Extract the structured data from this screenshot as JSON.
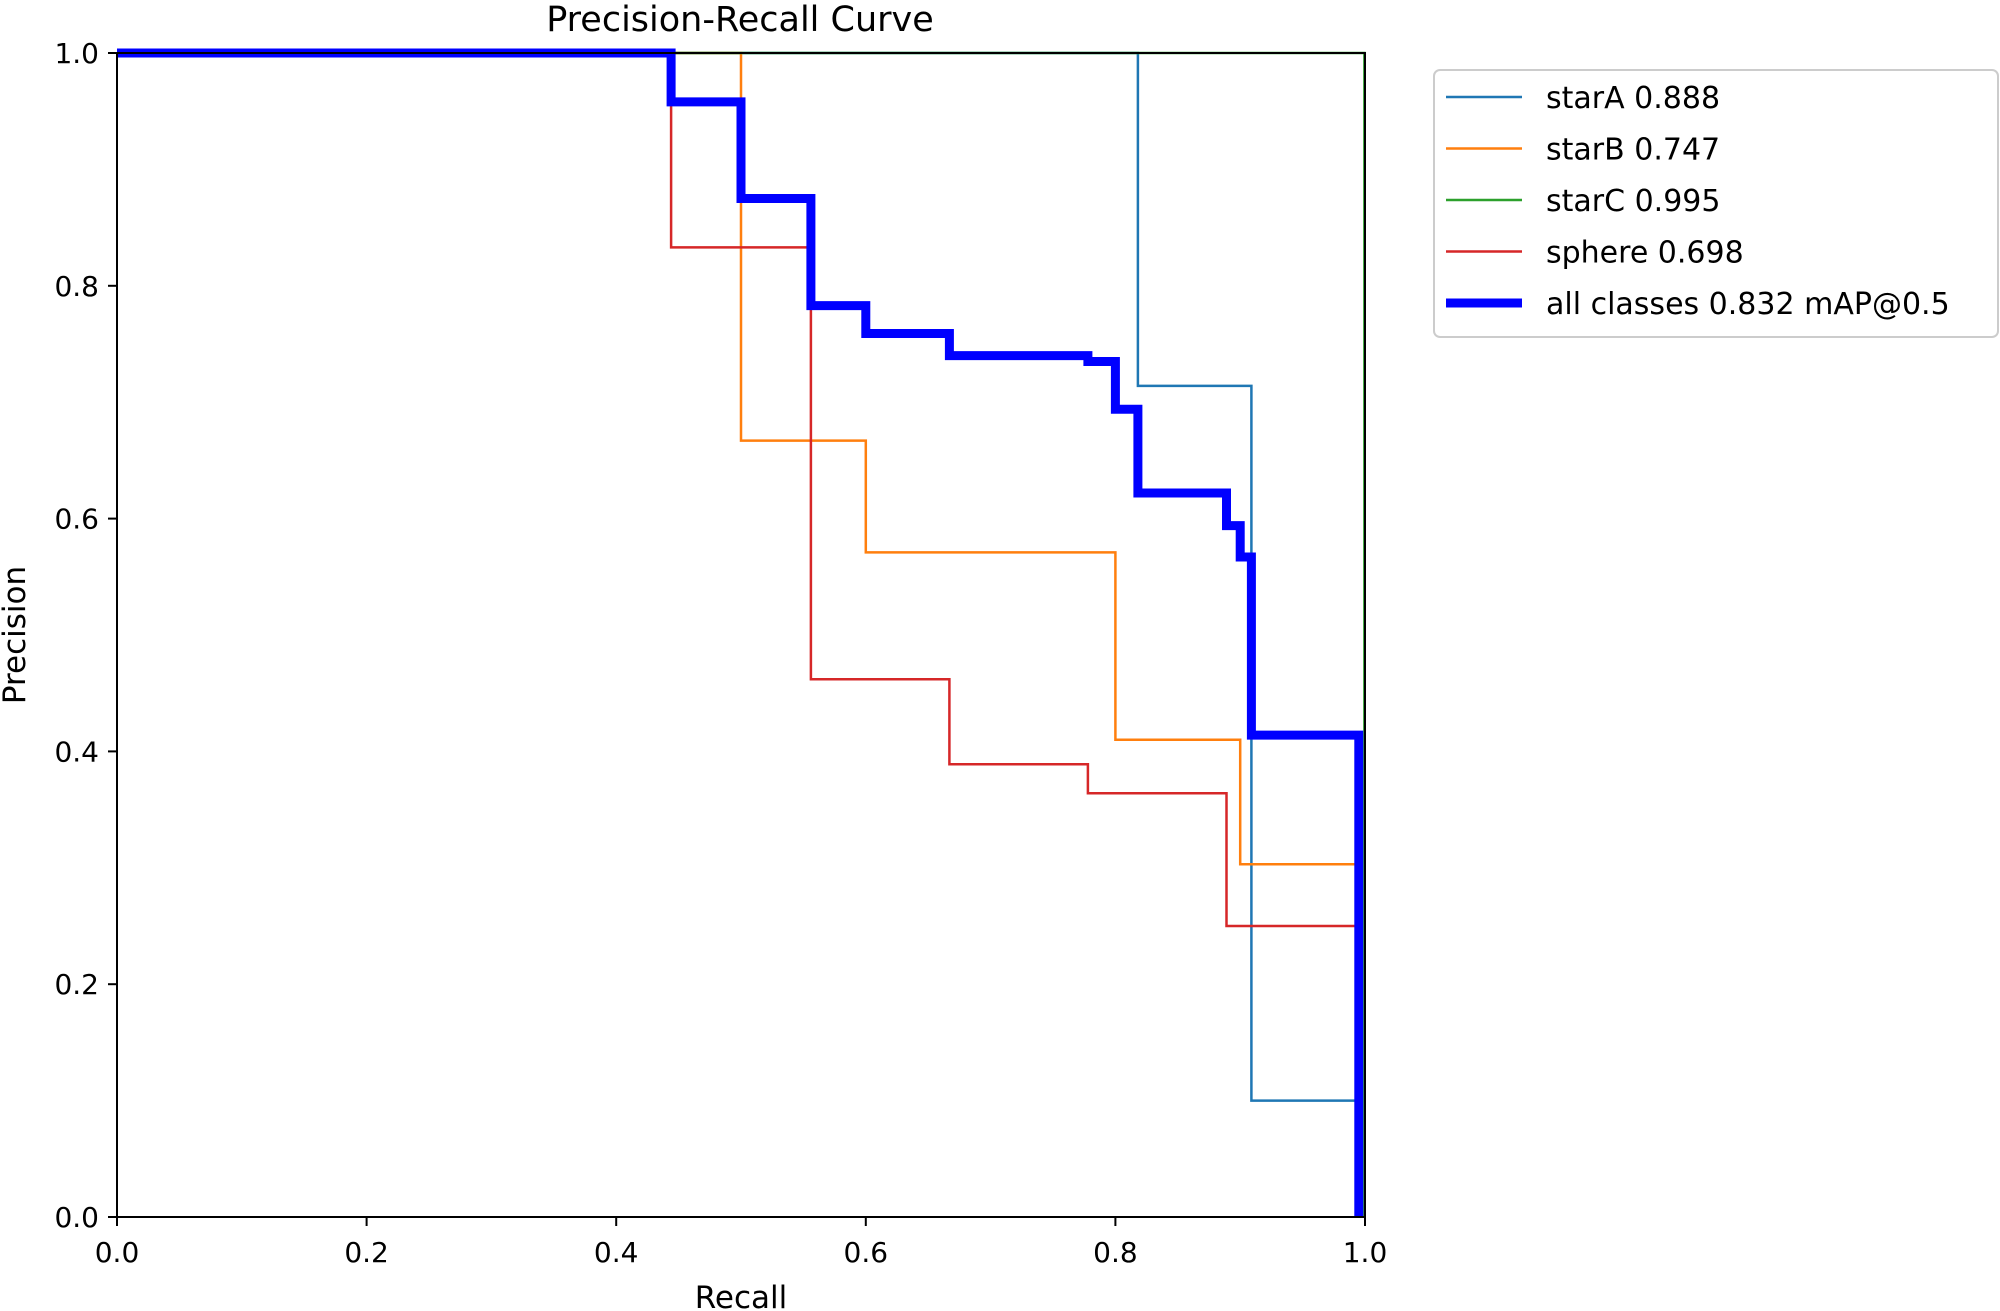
{
  "chart_data": {
    "type": "line",
    "title": "Precision-Recall Curve",
    "xlabel": "Recall",
    "ylabel": "Precision",
    "xlim": [
      0,
      1
    ],
    "ylim": [
      0,
      1
    ],
    "xticks": [
      0.0,
      0.2,
      0.4,
      0.6,
      0.8,
      1.0
    ],
    "yticks": [
      0.0,
      0.2,
      0.4,
      0.6,
      0.8,
      1.0
    ],
    "tick_labels": [
      "0.0",
      "0.2",
      "0.4",
      "0.6",
      "0.8",
      "1.0"
    ],
    "grid": false,
    "legend_position": "outside-top-right",
    "series": [
      {
        "name": "starA",
        "label": "starA 0.888",
        "ap": 0.888,
        "color": "#1f77b4",
        "bold": false,
        "points": [
          [
            0,
            1
          ],
          [
            0.818,
            1
          ],
          [
            0.818,
            0.714
          ],
          [
            0.909,
            0.714
          ],
          [
            0.909,
            0.1
          ],
          [
            0.995,
            0.1
          ],
          [
            0.995,
            0
          ]
        ]
      },
      {
        "name": "starB",
        "label": "starB 0.747",
        "ap": 0.747,
        "color": "#ff7f0e",
        "bold": false,
        "points": [
          [
            0,
            1
          ],
          [
            0.5,
            1
          ],
          [
            0.5,
            0.667
          ],
          [
            0.6,
            0.667
          ],
          [
            0.6,
            0.571
          ],
          [
            0.8,
            0.571
          ],
          [
            0.8,
            0.41
          ],
          [
            0.9,
            0.41
          ],
          [
            0.9,
            0.303
          ],
          [
            0.995,
            0.303
          ],
          [
            0.995,
            0
          ]
        ]
      },
      {
        "name": "starC",
        "label": "starC 0.995",
        "ap": 0.995,
        "color": "#2ca02c",
        "bold": false,
        "points": [
          [
            0,
            1
          ],
          [
            0.9995,
            1
          ],
          [
            0.9995,
            0
          ]
        ]
      },
      {
        "name": "sphere",
        "label": "sphere 0.698",
        "ap": 0.698,
        "color": "#d62728",
        "bold": false,
        "points": [
          [
            0,
            1
          ],
          [
            0.444,
            1
          ],
          [
            0.444,
            0.833
          ],
          [
            0.556,
            0.833
          ],
          [
            0.556,
            0.462
          ],
          [
            0.667,
            0.462
          ],
          [
            0.667,
            0.389
          ],
          [
            0.778,
            0.389
          ],
          [
            0.778,
            0.364
          ],
          [
            0.889,
            0.364
          ],
          [
            0.889,
            0.25
          ],
          [
            0.995,
            0.25
          ],
          [
            0.995,
            0
          ]
        ]
      },
      {
        "name": "all classes",
        "label": "all classes 0.832 mAP@0.5",
        "ap": 0.832,
        "color": "#0000ff",
        "bold": true,
        "points": [
          [
            0,
            1
          ],
          [
            0.444,
            1
          ],
          [
            0.444,
            0.958
          ],
          [
            0.5,
            0.958
          ],
          [
            0.5,
            0.875
          ],
          [
            0.556,
            0.875
          ],
          [
            0.556,
            0.783
          ],
          [
            0.6,
            0.783
          ],
          [
            0.6,
            0.759
          ],
          [
            0.667,
            0.759
          ],
          [
            0.667,
            0.74
          ],
          [
            0.778,
            0.74
          ],
          [
            0.778,
            0.735
          ],
          [
            0.8,
            0.735
          ],
          [
            0.8,
            0.694
          ],
          [
            0.818,
            0.694
          ],
          [
            0.818,
            0.622
          ],
          [
            0.889,
            0.622
          ],
          [
            0.889,
            0.594
          ],
          [
            0.9,
            0.594
          ],
          [
            0.9,
            0.567
          ],
          [
            0.909,
            0.567
          ],
          [
            0.909,
            0.414
          ],
          [
            0.995,
            0.414
          ],
          [
            0.995,
            0
          ]
        ]
      }
    ]
  }
}
